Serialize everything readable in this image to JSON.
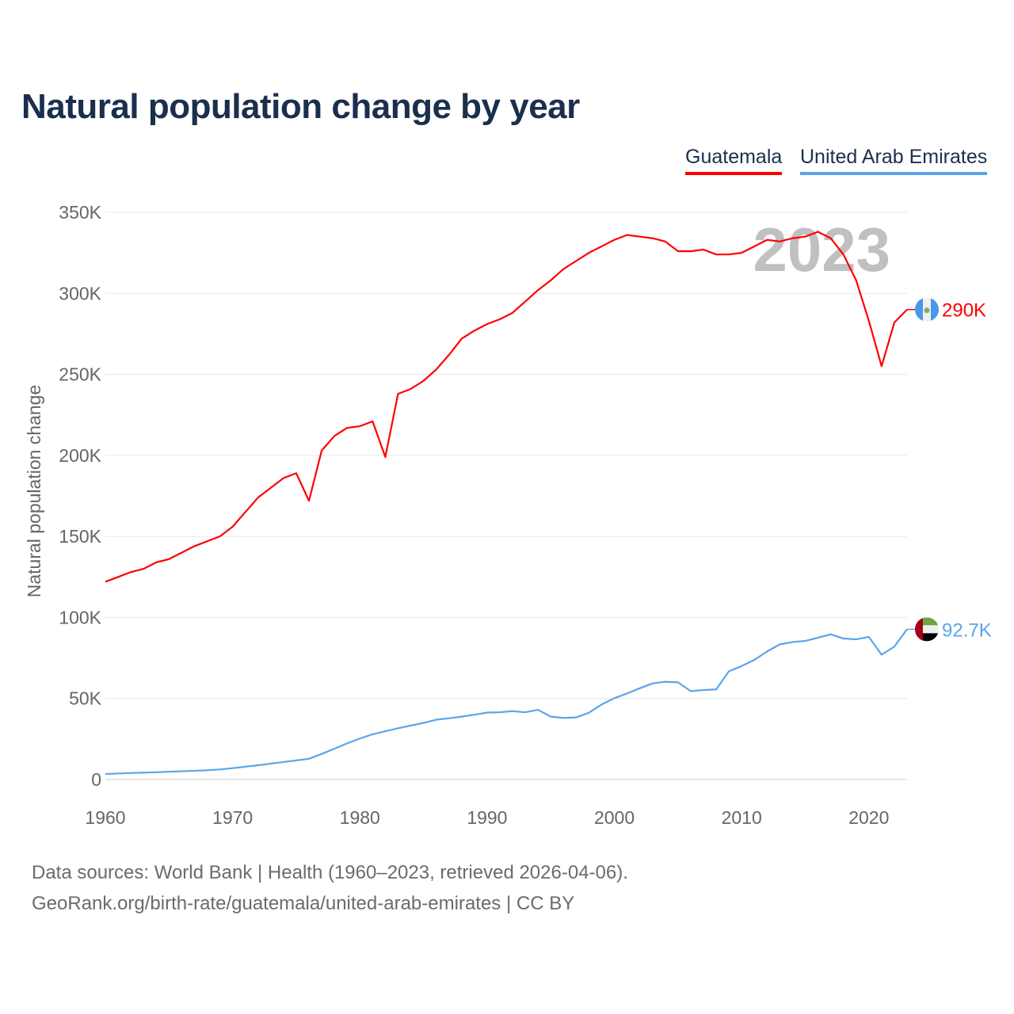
{
  "title": "Natural population change by year",
  "legend": [
    "Guatemala",
    "United Arab Emirates"
  ],
  "footer": {
    "line1": "Data sources: World Bank | Health (1960–2023, retrieved 2026-04-06).",
    "line2": "GeoRank.org/birth-rate/guatemala/united-arab-emirates | CC BY"
  },
  "colors": {
    "guatemala": "#ff0000",
    "uae": "#5aa5ea",
    "title": "#1b2f4d",
    "year_watermark": "#c0c0c0"
  },
  "chart_data": {
    "type": "line",
    "title": "Natural population change by year",
    "xlabel": "",
    "ylabel": "Natural population change",
    "xlim": [
      1960,
      2023
    ],
    "ylim": [
      0,
      350000
    ],
    "grid": true,
    "legend_position": "top-right",
    "year_label": "2023",
    "x_ticks": [
      1960,
      1970,
      1980,
      1990,
      2000,
      2010,
      2020
    ],
    "x_tick_labels": [
      "1960",
      "1970",
      "1980",
      "1990",
      "2000",
      "2010",
      "2020"
    ],
    "y_ticks": [
      0,
      50000,
      100000,
      150000,
      200000,
      250000,
      300000,
      350000
    ],
    "y_tick_labels": [
      "0",
      "50K",
      "100K",
      "150K",
      "200K",
      "250K",
      "300K",
      "350K"
    ],
    "x_start": 1960,
    "series": [
      {
        "name": "Guatemala",
        "color": "#ff0000",
        "end_label": "290K",
        "flag": "guatemala-flag",
        "values_k": [
          122,
          125,
          128,
          130,
          134,
          136,
          140,
          144,
          147,
          150,
          156,
          165,
          174,
          180,
          186,
          189,
          172,
          203,
          212,
          217,
          218,
          221,
          199,
          238,
          241,
          246,
          253,
          262,
          272,
          277,
          281,
          284,
          288,
          295,
          302,
          308,
          315,
          320,
          325,
          329,
          333,
          336,
          335,
          334,
          332,
          326,
          326,
          327,
          324,
          324,
          325,
          329,
          333,
          332,
          334,
          335,
          338,
          334,
          324,
          308,
          283,
          255,
          282,
          290
        ]
      },
      {
        "name": "United Arab Emirates",
        "color": "#5aa5ea",
        "end_label": "92.7K",
        "flag": "uae-flag",
        "values_k": [
          3.4,
          3.7,
          4.0,
          4.2,
          4.5,
          4.8,
          5.1,
          5.4,
          5.7,
          6.2,
          7.0,
          7.9,
          8.8,
          9.8,
          10.8,
          11.8,
          12.8,
          15.8,
          19.0,
          22.3,
          25.3,
          27.9,
          29.8,
          31.6,
          33.3,
          34.9,
          36.9,
          37.8,
          38.8,
          40.0,
          41.3,
          41.5,
          42.2,
          41.5,
          43.0,
          38.8,
          38.0,
          38.3,
          41.2,
          46.3,
          50.2,
          53.1,
          56.3,
          59.3,
          60.3,
          60.0,
          54.5,
          55.2,
          55.6,
          66.8,
          70.0,
          73.8,
          79.0,
          83.4,
          84.8,
          85.5,
          87.5,
          89.6,
          87.0,
          86.5,
          88.0,
          77.0,
          82.0,
          92.7
        ]
      }
    ]
  }
}
